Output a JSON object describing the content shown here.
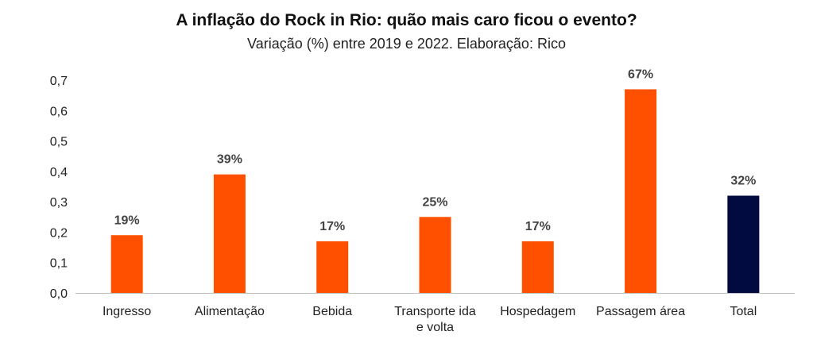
{
  "chart_data": {
    "type": "bar",
    "title": "A inflação do Rock in Rio: quão mais caro ficou o evento?",
    "subtitle": "Variação (%) entre 2019 e 2022. Elaboração: Rico",
    "categories": [
      [
        "Ingresso"
      ],
      [
        "Alimentação"
      ],
      [
        "Bebida"
      ],
      [
        "Transporte ida",
        "e volta"
      ],
      [
        "Hospedagem"
      ],
      [
        "Passagem área"
      ],
      [
        "Total"
      ]
    ],
    "values": [
      0.19,
      0.39,
      0.17,
      0.25,
      0.17,
      0.67,
      0.32
    ],
    "data_labels": [
      "19%",
      "39%",
      "17%",
      "25%",
      "17%",
      "67%",
      "32%"
    ],
    "bar_colors": [
      "#ff5000",
      "#ff5000",
      "#ff5000",
      "#ff5000",
      "#ff5000",
      "#ff5000",
      "#020b40"
    ],
    "y_ticks": [
      "0,0",
      "0,1",
      "0,2",
      "0,3",
      "0,4",
      "0,5",
      "0,6",
      "0,7"
    ],
    "ylim": [
      0,
      0.7
    ],
    "grid": false,
    "legend": "none"
  }
}
